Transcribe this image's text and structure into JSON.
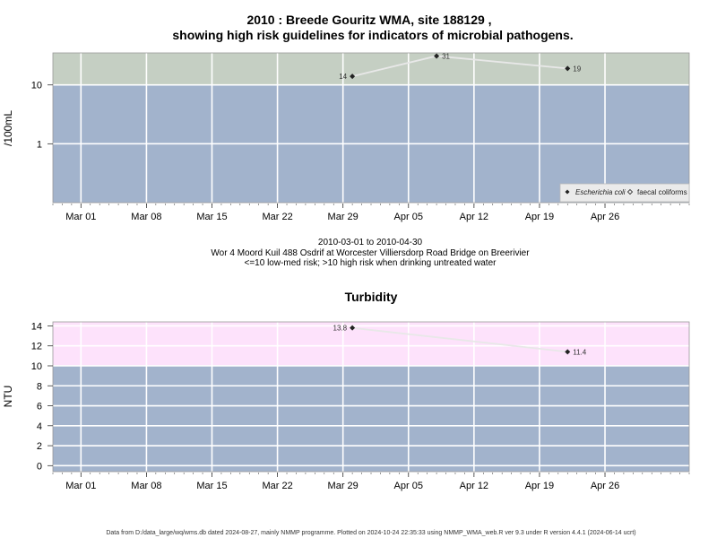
{
  "chart_data": [
    {
      "type": "line",
      "title_line1": "2010 : Breede Gouritz WMA, site 188129 ,",
      "title_line2": "showing high risk guidelines for indicators of microbial pathogens.",
      "ylabel": "/100mL",
      "y_scale": "log",
      "ylim": [
        0.1,
        35
      ],
      "y_ticks": [
        {
          "value": 1,
          "label": "1"
        },
        {
          "value": 10,
          "label": "10"
        }
      ],
      "guideline_threshold": 10,
      "high_band_color": "#c5cfc3",
      "low_band_color": "#a2b3cc",
      "x_ticks": [
        "Mar 01",
        "Mar 08",
        "Mar 15",
        "Mar 22",
        "Mar 29",
        "Apr 05",
        "Apr 12",
        "Apr 19",
        "Apr 26"
      ],
      "series": [
        {
          "name": "Escherichia coli",
          "points": [
            {
              "date": "2010-03-30",
              "value": 14,
              "label": "14"
            },
            {
              "date": "2010-04-08",
              "value": 31,
              "label": "31"
            },
            {
              "date": "2010-04-22",
              "value": 19,
              "label": "19"
            }
          ]
        }
      ],
      "legend": {
        "position": "bottom-right",
        "items": [
          "Escherichia coli",
          "faecal coliforms"
        ]
      },
      "caption_line1": "2010-03-01 to 2010-04-30",
      "caption_line2": "Wor 4 Moord Kuil 488 Osdrif at Worcester Villiersdorp Road Bridge on Breerivier",
      "caption_line3": "<=10 low-med risk; >10 high risk when drinking untreated water"
    },
    {
      "type": "line",
      "title": "Turbidity",
      "ylabel": "NTU",
      "ylim": [
        -0.6,
        14.4
      ],
      "y_ticks": [
        {
          "value": 0,
          "label": "0"
        },
        {
          "value": 2,
          "label": "2"
        },
        {
          "value": 4,
          "label": "4"
        },
        {
          "value": 6,
          "label": "6"
        },
        {
          "value": 8,
          "label": "8"
        },
        {
          "value": 10,
          "label": "10"
        },
        {
          "value": 12,
          "label": "12"
        },
        {
          "value": 14,
          "label": "14"
        }
      ],
      "guideline_threshold": 10,
      "high_band_color": "#fde2fb",
      "low_band_color": "#a2b3cc",
      "x_ticks": [
        "Mar 01",
        "Mar 08",
        "Mar 15",
        "Mar 22",
        "Mar 29",
        "Apr 05",
        "Apr 12",
        "Apr 19",
        "Apr 26"
      ],
      "series": [
        {
          "name": "",
          "points": [
            {
              "date": "2010-03-30",
              "value": 13.8,
              "label": "13.8"
            },
            {
              "date": "2010-04-22",
              "value": 11.4,
              "label": "11.4"
            }
          ]
        }
      ]
    }
  ],
  "footer": "Data from D:/data_large/wq/wms.db dated 2024-08-27, mainly NMMP programme. Plotted on 2024-10-24 22:35:33 using NMMP_WMA_web.R ver 9.3 under R version 4.4.1 (2024-06-14 ucrt)"
}
